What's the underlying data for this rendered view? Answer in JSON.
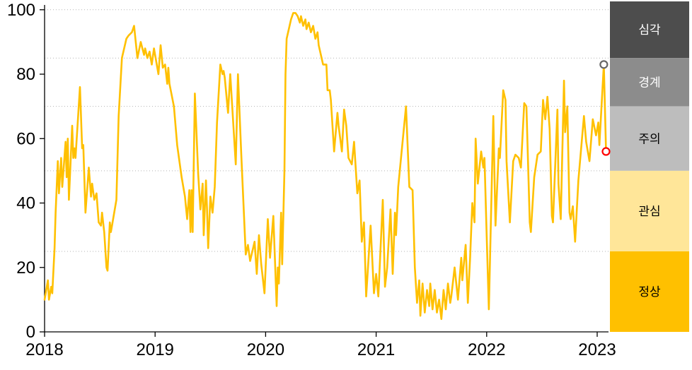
{
  "chart_data": {
    "type": "line",
    "title": "",
    "x_axis": {
      "ticks": [
        "2018",
        "2019",
        "2020",
        "2021",
        "2022",
        "2023"
      ],
      "tick_values": [
        2018,
        2019,
        2020,
        2021,
        2022,
        2023
      ],
      "range": [
        2018,
        2023.1
      ]
    },
    "y_axis": {
      "ticks": [
        "0",
        "20",
        "40",
        "60",
        "80",
        "100"
      ],
      "tick_values": [
        0,
        20,
        40,
        60,
        80,
        100
      ],
      "range": [
        0,
        100
      ]
    },
    "gridlines_y": [
      25,
      50,
      70,
      85,
      100
    ],
    "grid_style": "dotted",
    "legend_position": "right-zone-column",
    "zones": [
      {
        "label": "심각",
        "from": 85,
        "to": 100,
        "color": "#4D4D4D",
        "text_color": "#FFFFFF"
      },
      {
        "label": "경계",
        "from": 70,
        "to": 85,
        "color": "#8C8C8C",
        "text_color": "#FFFFFF"
      },
      {
        "label": "주의",
        "from": 50,
        "to": 70,
        "color": "#BDBDBD",
        "text_color": "#000000"
      },
      {
        "label": "관심",
        "from": 25,
        "to": 50,
        "color": "#FFE699",
        "text_color": "#000000"
      },
      {
        "label": "정상",
        "from": 0,
        "to": 25,
        "color": "#FFC000",
        "text_color": "#000000"
      }
    ],
    "markers": [
      {
        "name": "recent-peak-marker",
        "x": 2023.06,
        "y": 83,
        "stroke": "#666666"
      },
      {
        "name": "latest-value-marker",
        "x": 2023.08,
        "y": 56,
        "stroke": "#FF0000"
      }
    ],
    "colors": {
      "line": "#FFC000",
      "axis": "#000000",
      "grid": "#B3B3B3",
      "marker_fill": "#FFFFFF"
    },
    "series": [
      {
        "points": [
          [
            2018.0,
            10
          ],
          [
            2018.03,
            16
          ],
          [
            2018.04,
            10
          ],
          [
            2018.06,
            14
          ],
          [
            2018.07,
            12
          ],
          [
            2018.09,
            26
          ],
          [
            2018.1,
            37
          ],
          [
            2018.12,
            53
          ],
          [
            2018.13,
            43
          ],
          [
            2018.15,
            54
          ],
          [
            2018.16,
            45
          ],
          [
            2018.19,
            59
          ],
          [
            2018.2,
            48
          ],
          [
            2018.21,
            60
          ],
          [
            2018.22,
            41
          ],
          [
            2018.25,
            64
          ],
          [
            2018.26,
            54
          ],
          [
            2018.27,
            57
          ],
          [
            2018.28,
            54
          ],
          [
            2018.32,
            76
          ],
          [
            2018.34,
            57
          ],
          [
            2018.35,
            58
          ],
          [
            2018.37,
            37
          ],
          [
            2018.4,
            51
          ],
          [
            2018.42,
            42
          ],
          [
            2018.43,
            46
          ],
          [
            2018.45,
            41
          ],
          [
            2018.47,
            43
          ],
          [
            2018.49,
            34
          ],
          [
            2018.51,
            33
          ],
          [
            2018.52,
            37
          ],
          [
            2018.54,
            31
          ],
          [
            2018.56,
            20
          ],
          [
            2018.57,
            19
          ],
          [
            2018.59,
            34
          ],
          [
            2018.6,
            31
          ],
          [
            2018.61,
            33
          ],
          [
            2018.65,
            41
          ],
          [
            2018.67,
            67
          ],
          [
            2018.7,
            85
          ],
          [
            2018.74,
            91
          ],
          [
            2018.76,
            92
          ],
          [
            2018.79,
            93
          ],
          [
            2018.81,
            95
          ],
          [
            2018.84,
            85
          ],
          [
            2018.87,
            90
          ],
          [
            2018.9,
            86
          ],
          [
            2018.91,
            88
          ],
          [
            2018.93,
            85
          ],
          [
            2018.95,
            87
          ],
          [
            2018.97,
            83
          ],
          [
            2018.99,
            88
          ],
          [
            2019.03,
            80
          ],
          [
            2019.05,
            89
          ],
          [
            2019.07,
            82
          ],
          [
            2019.09,
            83
          ],
          [
            2019.11,
            77
          ],
          [
            2019.12,
            82
          ],
          [
            2019.13,
            77
          ],
          [
            2019.17,
            70
          ],
          [
            2019.2,
            58
          ],
          [
            2019.24,
            48
          ],
          [
            2019.27,
            42
          ],
          [
            2019.29,
            35
          ],
          [
            2019.31,
            44
          ],
          [
            2019.32,
            31
          ],
          [
            2019.33,
            44
          ],
          [
            2019.34,
            31
          ],
          [
            2019.36,
            74
          ],
          [
            2019.39,
            49
          ],
          [
            2019.41,
            38
          ],
          [
            2019.43,
            46
          ],
          [
            2019.44,
            30
          ],
          [
            2019.46,
            47
          ],
          [
            2019.47,
            38
          ],
          [
            2019.48,
            26
          ],
          [
            2019.5,
            42
          ],
          [
            2019.52,
            37
          ],
          [
            2019.54,
            45
          ],
          [
            2019.56,
            65
          ],
          [
            2019.59,
            83
          ],
          [
            2019.61,
            80
          ],
          [
            2019.62,
            81
          ],
          [
            2019.63,
            79
          ],
          [
            2019.66,
            68
          ],
          [
            2019.68,
            80
          ],
          [
            2019.73,
            52
          ],
          [
            2019.75,
            80
          ],
          [
            2019.78,
            55
          ],
          [
            2019.82,
            24
          ],
          [
            2019.84,
            27
          ],
          [
            2019.86,
            22
          ],
          [
            2019.9,
            28
          ],
          [
            2019.92,
            18
          ],
          [
            2019.94,
            30
          ],
          [
            2019.96,
            21
          ],
          [
            2019.99,
            12
          ],
          [
            2020.02,
            35
          ],
          [
            2020.04,
            23
          ],
          [
            2020.07,
            36
          ],
          [
            2020.1,
            8
          ],
          [
            2020.11,
            20
          ],
          [
            2020.12,
            15
          ],
          [
            2020.14,
            37
          ],
          [
            2020.15,
            21
          ],
          [
            2020.17,
            50
          ],
          [
            2020.18,
            80
          ],
          [
            2020.19,
            91
          ],
          [
            2020.21,
            94
          ],
          [
            2020.23,
            97
          ],
          [
            2020.25,
            99
          ],
          [
            2020.27,
            99
          ],
          [
            2020.29,
            98
          ],
          [
            2020.31,
            96
          ],
          [
            2020.32,
            98
          ],
          [
            2020.34,
            95
          ],
          [
            2020.36,
            97
          ],
          [
            2020.37,
            94
          ],
          [
            2020.39,
            96
          ],
          [
            2020.41,
            93
          ],
          [
            2020.43,
            95
          ],
          [
            2020.45,
            91
          ],
          [
            2020.47,
            93
          ],
          [
            2020.48,
            89
          ],
          [
            2020.5,
            86
          ],
          [
            2020.52,
            83
          ],
          [
            2020.55,
            83
          ],
          [
            2020.56,
            75
          ],
          [
            2020.58,
            75
          ],
          [
            2020.59,
            72
          ],
          [
            2020.62,
            56
          ],
          [
            2020.65,
            68
          ],
          [
            2020.66,
            64
          ],
          [
            2020.69,
            56
          ],
          [
            2020.71,
            69
          ],
          [
            2020.73,
            64
          ],
          [
            2020.75,
            54
          ],
          [
            2020.78,
            52
          ],
          [
            2020.8,
            59
          ],
          [
            2020.83,
            43
          ],
          [
            2020.85,
            47
          ],
          [
            2020.87,
            28
          ],
          [
            2020.89,
            34
          ],
          [
            2020.91,
            11
          ],
          [
            2020.95,
            33
          ],
          [
            2020.98,
            12
          ],
          [
            2021.0,
            18
          ],
          [
            2021.02,
            11
          ],
          [
            2021.06,
            41
          ],
          [
            2021.08,
            14
          ],
          [
            2021.1,
            20
          ],
          [
            2021.13,
            38
          ],
          [
            2021.15,
            18
          ],
          [
            2021.17,
            37
          ],
          [
            2021.18,
            30
          ],
          [
            2021.2,
            45
          ],
          [
            2021.27,
            70
          ],
          [
            2021.3,
            45
          ],
          [
            2021.33,
            44
          ],
          [
            2021.35,
            20
          ],
          [
            2021.37,
            9
          ],
          [
            2021.39,
            16
          ],
          [
            2021.4,
            5
          ],
          [
            2021.42,
            15
          ],
          [
            2021.44,
            6
          ],
          [
            2021.46,
            13
          ],
          [
            2021.48,
            8
          ],
          [
            2021.49,
            15
          ],
          [
            2021.51,
            7
          ],
          [
            2021.53,
            13
          ],
          [
            2021.55,
            6
          ],
          [
            2021.57,
            10
          ],
          [
            2021.59,
            4
          ],
          [
            2021.61,
            13
          ],
          [
            2021.63,
            7
          ],
          [
            2021.65,
            15
          ],
          [
            2021.67,
            9
          ],
          [
            2021.68,
            11
          ],
          [
            2021.71,
            20
          ],
          [
            2021.74,
            10
          ],
          [
            2021.77,
            23
          ],
          [
            2021.78,
            16
          ],
          [
            2021.81,
            27
          ],
          [
            2021.83,
            9
          ],
          [
            2021.85,
            23
          ],
          [
            2021.87,
            40
          ],
          [
            2021.89,
            34
          ],
          [
            2021.9,
            60
          ],
          [
            2021.92,
            46
          ],
          [
            2021.95,
            56
          ],
          [
            2021.97,
            51
          ],
          [
            2021.98,
            54
          ],
          [
            2022.0,
            30
          ],
          [
            2022.02,
            7
          ],
          [
            2022.06,
            67
          ],
          [
            2022.08,
            33
          ],
          [
            2022.11,
            57
          ],
          [
            2022.12,
            54
          ],
          [
            2022.15,
            75
          ],
          [
            2022.17,
            72
          ],
          [
            2022.18,
            53
          ],
          [
            2022.21,
            34
          ],
          [
            2022.24,
            53
          ],
          [
            2022.26,
            55
          ],
          [
            2022.29,
            54
          ],
          [
            2022.31,
            51
          ],
          [
            2022.34,
            71
          ],
          [
            2022.36,
            70
          ],
          [
            2022.39,
            34
          ],
          [
            2022.4,
            31
          ],
          [
            2022.43,
            48
          ],
          [
            2022.46,
            55
          ],
          [
            2022.49,
            56
          ],
          [
            2022.51,
            72
          ],
          [
            2022.53,
            66
          ],
          [
            2022.55,
            73
          ],
          [
            2022.57,
            63
          ],
          [
            2022.59,
            36
          ],
          [
            2022.6,
            34
          ],
          [
            2022.64,
            69
          ],
          [
            2022.65,
            46
          ],
          [
            2022.67,
            35
          ],
          [
            2022.7,
            78
          ],
          [
            2022.71,
            62
          ],
          [
            2022.73,
            70
          ],
          [
            2022.75,
            37
          ],
          [
            2022.76,
            35
          ],
          [
            2022.78,
            39
          ],
          [
            2022.8,
            28
          ],
          [
            2022.83,
            47
          ],
          [
            2022.88,
            67
          ],
          [
            2022.9,
            59
          ],
          [
            2022.93,
            53
          ],
          [
            2022.96,
            66
          ],
          [
            2022.99,
            61
          ],
          [
            2023.01,
            65
          ],
          [
            2023.02,
            58
          ],
          [
            2023.06,
            83
          ],
          [
            2023.08,
            56
          ]
        ]
      }
    ]
  }
}
